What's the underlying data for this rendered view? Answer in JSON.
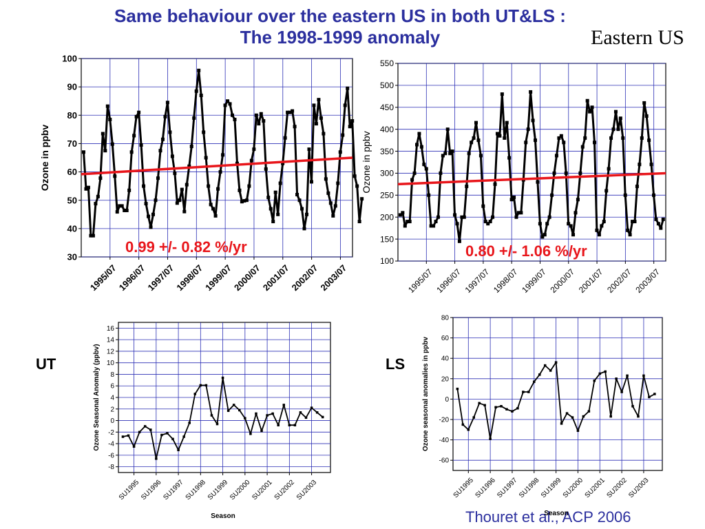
{
  "slide": {
    "title_line1": "Same behaviour over the eastern US in both UT&LS :",
    "title_line2": "The 1998-1999 anomaly",
    "region": "Eastern US",
    "label_ut": "UT",
    "label_ls": "LS",
    "citation": "Thouret et al., ACP 2006"
  },
  "colors": {
    "title": "#2b2f9e",
    "grid": "#2b2fb5",
    "trend": "#e8161b",
    "series": "#000000",
    "annotation": "#e8161b"
  },
  "chart_data": [
    {
      "id": "ut-ozone",
      "type": "line",
      "ylabel": "Ozone in ppbv",
      "xlabel": "",
      "ylim": [
        30,
        100
      ],
      "yticks": [
        30,
        40,
        50,
        60,
        70,
        80,
        90,
        100
      ],
      "xlim": [
        1994.5,
        2003.92
      ],
      "xtick_positions": [
        1995.5,
        1996.5,
        1997.5,
        1998.5,
        1999.5,
        2000.5,
        2001.5,
        2002.5,
        2003.5
      ],
      "xtick_labels": [
        "1995/07",
        "1996/07",
        "1997/07",
        "1998/07",
        "1999/07",
        "2000/07",
        "2001/07",
        "2002/07",
        "2003/07"
      ],
      "grid": true,
      "start": 1994.583,
      "step": 0.0833,
      "values": [
        67,
        54,
        54.5,
        37.5,
        37.5,
        48.8,
        51.3,
        57.8,
        73.5,
        67.5,
        83.2,
        78.5,
        69.8,
        58.5,
        45.9,
        48,
        48,
        46.4,
        46.4,
        53.5,
        67,
        72.8,
        79.5,
        81,
        69.5,
        55,
        48.8,
        44.3,
        40.5,
        45,
        50,
        57.8,
        67.5,
        71.5,
        79.5,
        84.5,
        74,
        65.5,
        59.5,
        49,
        50,
        53.8,
        46,
        55.5,
        62,
        69,
        79,
        88.5,
        95.8,
        87,
        74,
        65,
        55,
        48.5,
        47,
        44.5,
        54,
        60,
        66,
        83.5,
        85,
        84,
        80,
        78.5,
        63,
        53.5,
        49.5,
        49.8,
        50,
        55,
        64,
        68,
        80,
        77,
        80.5,
        78,
        61,
        51,
        47,
        42.5,
        52.8,
        45,
        56,
        63,
        72,
        81,
        81,
        81.5,
        76,
        52,
        50,
        47,
        40,
        45,
        68,
        56.5,
        83.5,
        77,
        85.5,
        79,
        73.5,
        57.5,
        52.5,
        49,
        44.5,
        48,
        56,
        67,
        73,
        83.5,
        89.5,
        76,
        78,
        58.5,
        55,
        42.5,
        50.5
      ],
      "trend": [
        59.2,
        65.0
      ],
      "annotation": "0.99 +/- 0.82 %/yr"
    },
    {
      "id": "ls-ozone",
      "type": "line",
      "ylabel": "Ozone in ppbv",
      "xlabel": "",
      "ylim": [
        100,
        550
      ],
      "yticks": [
        100,
        150,
        200,
        250,
        300,
        350,
        400,
        450,
        500,
        550
      ],
      "xlim": [
        1994.5,
        2003.92
      ],
      "xtick_positions": [
        1995.5,
        1996.5,
        1997.5,
        1998.5,
        1999.5,
        2000.5,
        2001.5,
        2002.5,
        2003.5
      ],
      "xtick_labels": [
        "1995/07",
        "1996/07",
        "1997/07",
        "1998/07",
        "1999/07",
        "2000/07",
        "2001/07",
        "2002/07",
        "2003/07"
      ],
      "grid": true,
      "start": 1994.583,
      "step": 0.0833,
      "values": [
        205,
        210,
        180,
        190,
        190,
        285,
        300,
        365,
        390,
        360,
        320,
        310,
        250,
        180,
        180,
        190,
        200,
        300,
        340,
        345,
        400,
        345,
        350,
        205,
        185,
        145,
        200,
        200,
        270,
        345,
        370,
        380,
        415,
        375,
        340,
        225,
        190,
        185,
        190,
        200,
        275,
        390,
        385,
        480,
        380,
        415,
        335,
        240,
        245,
        200,
        210,
        210,
        285,
        370,
        400,
        485,
        420,
        375,
        280,
        185,
        155,
        160,
        185,
        200,
        250,
        300,
        340,
        380,
        385,
        370,
        300,
        185,
        180,
        160,
        210,
        240,
        300,
        360,
        380,
        465,
        440,
        450,
        370,
        170,
        160,
        180,
        190,
        260,
        310,
        380,
        400,
        440,
        400,
        425,
        380,
        250,
        170,
        160,
        190,
        190,
        270,
        320,
        380,
        460,
        430,
        375,
        320,
        250,
        195,
        185,
        175,
        195
      ],
      "trend": [
        275,
        300
      ],
      "annotation": "0.80 +/- 1.06 %/yr"
    },
    {
      "id": "ut-anomaly",
      "type": "line",
      "ylabel": "Ozone Seasonal Anomaly (ppbv)",
      "xlabel": "Season",
      "ylim": [
        -9,
        17
      ],
      "yticks": [
        -8,
        -6,
        -4,
        -2,
        0,
        2,
        4,
        6,
        8,
        10,
        12,
        14,
        16
      ],
      "xlim": [
        -1.8,
        36.4
      ],
      "xtick_positions": [
        1,
        5,
        9,
        13,
        17,
        21,
        25,
        29,
        33
      ],
      "xtick_labels": [
        "SU1995",
        "SU1996",
        "SU1997",
        "SU1998",
        "SU1999",
        "SU2000",
        "SU2001",
        "SU2002",
        "SU2003"
      ],
      "grid": true,
      "start": -1,
      "step": 1,
      "values": [
        -2.8,
        -2.6,
        -4.5,
        -2,
        -1,
        -1.6,
        -6.6,
        -2.5,
        -2.2,
        -3.2,
        -5.1,
        -2.8,
        -0.4,
        4.6,
        6.1,
        6.1,
        0.9,
        -0.6,
        7.4,
        1.7,
        2.7,
        1.8,
        0.4,
        -2.3,
        1.2,
        -1.8,
        0.9,
        1.2,
        -0.8,
        2.7,
        -0.8,
        -0.8,
        1.4,
        0.5,
        2.2,
        1.4,
        0.6
      ],
      "annotation": ""
    },
    {
      "id": "ls-anomaly",
      "type": "line",
      "ylabel": "Ozone seasonal anomalies in ppbv",
      "xlabel": "Season",
      "ylim": [
        -70,
        80
      ],
      "yticks": [
        -60,
        -40,
        -20,
        0,
        20,
        40,
        60,
        80
      ],
      "xlim": [
        -1.8,
        36.4
      ],
      "xtick_positions": [
        1,
        5,
        9,
        13,
        17,
        21,
        25,
        29,
        33
      ],
      "xtick_labels": [
        "SU1995",
        "SU1996",
        "SU1997",
        "SU1998",
        "SU1999",
        "SU2000",
        "SU2001",
        "SU2002",
        "SU2003"
      ],
      "grid": true,
      "start": -1,
      "step": 1,
      "values": [
        10,
        -25,
        -30,
        -18,
        -4,
        -6,
        -39,
        -8,
        -7,
        -10,
        -12,
        -9,
        7,
        7,
        17,
        24,
        33,
        28,
        36,
        -24,
        -14,
        -18,
        -31,
        -17,
        -12,
        18,
        25,
        27,
        -17,
        20,
        7,
        23,
        -7,
        -17,
        23,
        2,
        5
      ],
      "annotation": ""
    }
  ]
}
